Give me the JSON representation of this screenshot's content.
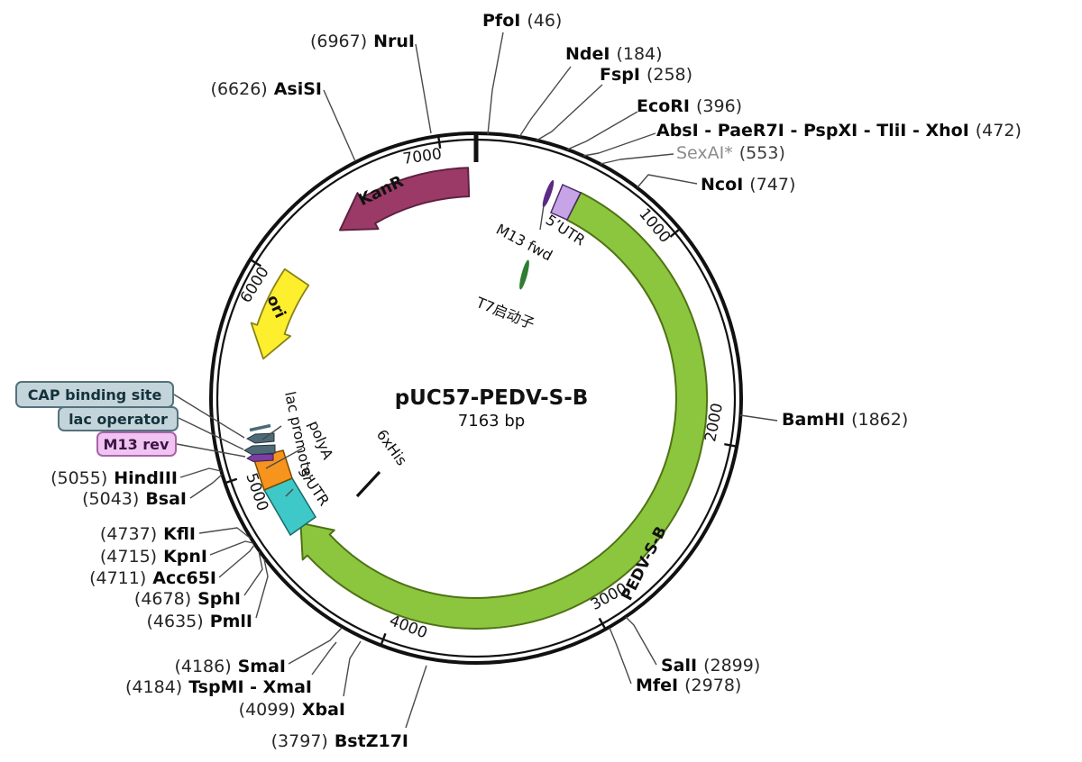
{
  "plasmid": {
    "title": "pUC57-PEDV-S-B",
    "size": "7163 bp",
    "ticks": [
      "1000",
      "2000",
      "3000",
      "4000",
      "5000",
      "6000",
      "7000"
    ],
    "features": {
      "kanr": "KanR",
      "ori": "ori",
      "pedv": "PEDV-S-B",
      "lac_promoter": "lac promoter",
      "polya": "polyA",
      "utr3": "3’UTR",
      "his6": "6xHis",
      "m13_fwd": "M13 fwd",
      "utr5": "5’UTR",
      "t7": "T7启动子",
      "cap": "CAP binding site",
      "lac_operator": "lac operator",
      "m13_rev": "M13 rev"
    },
    "sites": {
      "pfoi": {
        "name": "PfoI",
        "pos": "(46)"
      },
      "ndei": {
        "name": "NdeI",
        "pos": "(184)"
      },
      "fspi": {
        "name": "FspI",
        "pos": "(258)"
      },
      "ecori": {
        "name": "EcoRI",
        "pos": "(396)"
      },
      "xhoi_group": {
        "name": "AbsI - PaeR7I - PspXI - TliI - XhoI",
        "pos": "(472)"
      },
      "sexai": {
        "name": "SexAI*",
        "pos": "(553)"
      },
      "ncoi": {
        "name": "NcoI",
        "pos": "(747)"
      },
      "bamhi": {
        "name": "BamHI",
        "pos": "(1862)"
      },
      "sali": {
        "name": "SalI",
        "pos": "(2899)"
      },
      "mfei": {
        "name": "MfeI",
        "pos": "(2978)"
      },
      "bstz17i": {
        "name": "BstZ17I",
        "pos": "(3797)"
      },
      "xbai": {
        "name": "XbaI",
        "pos": "(4099)"
      },
      "tspmi_xmai": {
        "name": "TspMI - XmaI",
        "pos": "(4184)"
      },
      "smai": {
        "name": "SmaI",
        "pos": "(4186)"
      },
      "pmli": {
        "name": "PmlI",
        "pos": "(4635)"
      },
      "sphi": {
        "name": "SphI",
        "pos": "(4678)"
      },
      "acc65i": {
        "name": "Acc65I",
        "pos": "(4711)"
      },
      "kpni": {
        "name": "KpnI",
        "pos": "(4715)"
      },
      "kfli": {
        "name": "KflI",
        "pos": "(4737)"
      },
      "bsai": {
        "name": "BsaI",
        "pos": "(5043)"
      },
      "hindiii": {
        "name": "HindIII",
        "pos": "(5055)"
      },
      "asisi": {
        "name": "AsiSI",
        "pos": "(6626)"
      },
      "nrui": {
        "name": "NruI",
        "pos": "(6967)"
      }
    }
  },
  "colors": {
    "gene": "#8cc63e",
    "kanr": "#9c3a67",
    "ori": "#fdee2e",
    "utr5": "#c7a4e6",
    "utr3": "#3fc8c8",
    "polya": "#f7941e",
    "slate": "#4e6a78",
    "m13_rev": "#7b3fa3",
    "m13_fwd": "#5a2b86",
    "t7": "#2e7d32",
    "cap_box_bg": "#c3d5da",
    "cap_box_border": "#54727d",
    "m13_rev_box_bg": "#f0c4f0",
    "m13_rev_box_border": "#a863a8"
  }
}
